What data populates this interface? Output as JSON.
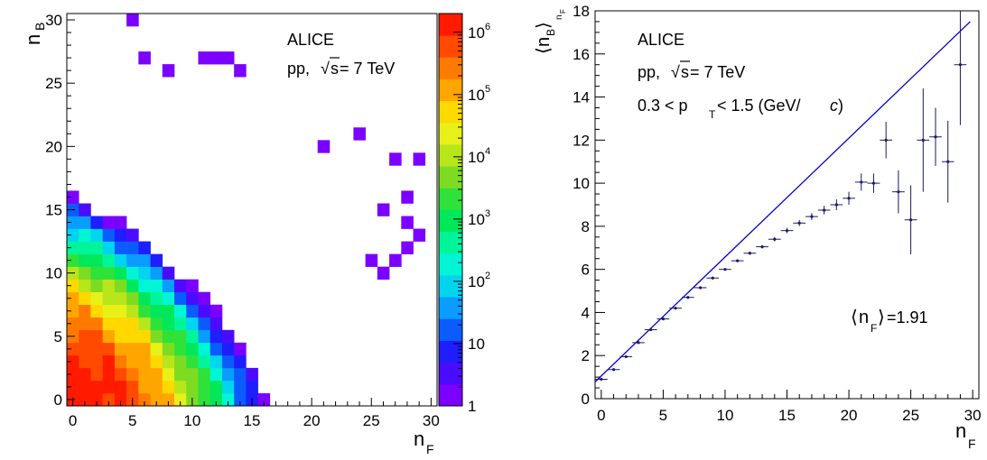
{
  "chart_data": [
    {
      "type": "heatmap",
      "xlabel": {
        "main": "n",
        "sub": "F"
      },
      "ylabel": {
        "main": "n",
        "sub": "B"
      },
      "xlim": [
        -0.5,
        30.5
      ],
      "ylim": [
        -0.5,
        30.5
      ],
      "x_ticks": [
        "0",
        "5",
        "10",
        "15",
        "20",
        "25",
        "30"
      ],
      "y_ticks": [
        "0",
        "5",
        "10",
        "15",
        "20",
        "25",
        "30"
      ],
      "color_scale": {
        "log": true,
        "zlim": [
          1,
          2000000
        ],
        "ticks": [
          {
            "value": 1,
            "label": "1"
          },
          {
            "value": 10,
            "label": "10"
          },
          {
            "value": 100,
            "label": "10",
            "exp": "2"
          },
          {
            "value": 1000,
            "label": "10",
            "exp": "3"
          },
          {
            "value": 10000,
            "label": "10",
            "exp": "4"
          },
          {
            "value": 100000,
            "label": "10",
            "exp": "5"
          },
          {
            "value": 1000000,
            "label": "10",
            "exp": "6"
          }
        ],
        "palette": [
          "#7b00ff",
          "#4a0cff",
          "#1e1eff",
          "#0a5cff",
          "#0a9cff",
          "#00d5f0",
          "#00f5d5",
          "#00f59a",
          "#00e85a",
          "#2ee23a",
          "#7ddc22",
          "#b7e61a",
          "#e8f01a",
          "#ffd800",
          "#ffa500",
          "#ff7a00",
          "#ff4a00",
          "#ff1a00"
        ]
      },
      "annotations": [
        {
          "text": "ALICE"
        },
        {
          "text_pre": "pp, ",
          "sqrt_symbol": "√",
          "sqrt_arg": "s",
          "text_post": " = 7 TeV"
        }
      ]
    },
    {
      "type": "scatter",
      "xlabel": {
        "main": "n",
        "sub": "F"
      },
      "ylabel": {
        "open": "⟨",
        "main": "n",
        "sub": "B",
        "close": "⟩",
        "sub2": "n",
        "sub3": "F"
      },
      "xlim": [
        -0.5,
        30.5
      ],
      "ylim": [
        0,
        18
      ],
      "x_ticks": [
        0,
        5,
        10,
        15,
        20,
        25,
        30
      ],
      "y_ticks": [
        0,
        2,
        4,
        6,
        8,
        10,
        12,
        14,
        16,
        18
      ],
      "series": [
        {
          "x": [
            0,
            1,
            2,
            3,
            4,
            5,
            6,
            7,
            8,
            9,
            10,
            11,
            12,
            13,
            14,
            15,
            16,
            17,
            18,
            19,
            20,
            21,
            22,
            23,
            24,
            25,
            26,
            27,
            28,
            29
          ],
          "y": [
            0.9,
            1.35,
            1.95,
            2.6,
            3.2,
            3.7,
            4.2,
            4.7,
            5.15,
            5.6,
            6.0,
            6.4,
            6.75,
            7.05,
            7.4,
            7.8,
            8.15,
            8.45,
            8.75,
            9.0,
            9.3,
            10.05,
            10.0,
            12.0,
            9.6,
            8.3,
            12.0,
            12.15,
            11.0,
            15.5
          ],
          "yerr": [
            0.02,
            0.02,
            0.02,
            0.02,
            0.02,
            0.02,
            0.02,
            0.03,
            0.03,
            0.04,
            0.05,
            0.06,
            0.07,
            0.08,
            0.1,
            0.12,
            0.14,
            0.16,
            0.2,
            0.25,
            0.3,
            0.4,
            0.45,
            0.85,
            1.0,
            1.6,
            2.4,
            1.35,
            1.9,
            2.8
          ]
        }
      ],
      "line": {
        "x": [
          -0.5,
          29.8
        ],
        "y": [
          0.78,
          17.5
        ],
        "color": "#0000cc"
      },
      "marker_color": "#1a1a66",
      "annotations": [
        {
          "text": "ALICE"
        },
        {
          "text_pre": "pp, ",
          "sqrt_symbol": "√",
          "sqrt_arg": "s",
          "text_post": " = 7 TeV"
        },
        {
          "pre": "0.3 < p",
          "sub": "T",
          "post": " < 1.5 (GeV/",
          "ital": "c",
          "end": ")"
        },
        {
          "open": "⟨",
          "main": "n",
          "sub": "F",
          "close": "⟩",
          "value": " =1.91"
        }
      ]
    }
  ]
}
